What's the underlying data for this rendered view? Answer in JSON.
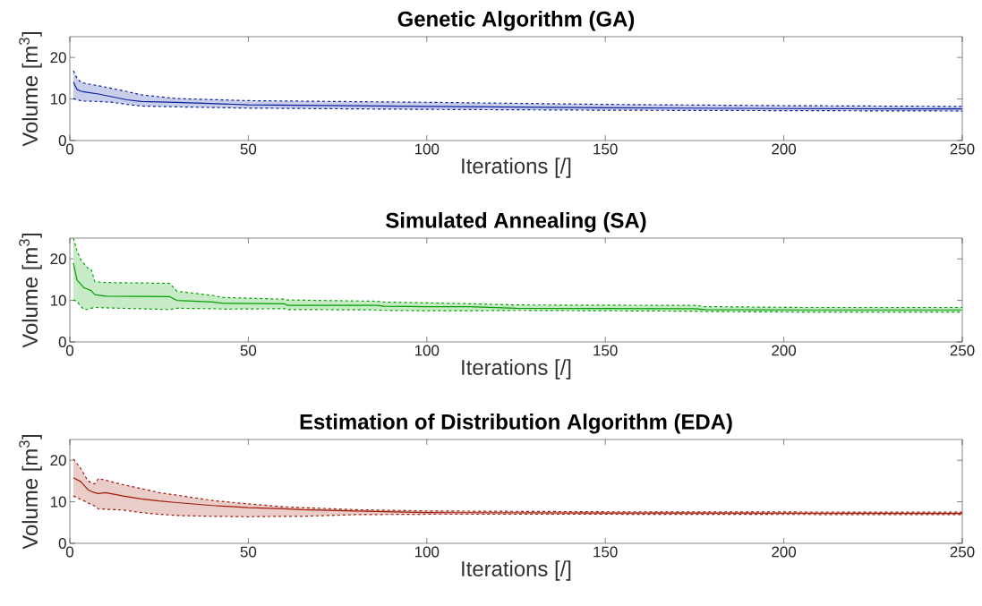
{
  "chart_data": [
    {
      "type": "line",
      "title": "Genetic Algorithm (GA)",
      "xlabel": "Iterations [/]",
      "ylabel": "Volume [m$^{3}$]",
      "xlim": [
        0,
        250
      ],
      "ylim": [
        0,
        25
      ],
      "xticks": [
        0,
        50,
        100,
        150,
        200,
        250
      ],
      "yticks": [
        0,
        10,
        20
      ],
      "grid": false,
      "series": [
        {
          "color": "#0a1f9e",
          "line_style": "solid",
          "x": [
            1,
            2,
            3,
            4,
            8,
            12,
            16,
            20,
            30,
            50,
            100,
            150,
            200,
            250
          ],
          "values": [
            14.1,
            12.3,
            11.9,
            11.7,
            11.2,
            10.5,
            9.8,
            9.4,
            9.2,
            8.6,
            8.2,
            7.9,
            7.7,
            7.6
          ],
          "upper": [
            16.8,
            15.0,
            14.1,
            13.8,
            13.2,
            12.5,
            11.8,
            11.0,
            10.1,
            9.6,
            9.2,
            8.7,
            8.4,
            8.2
          ],
          "lower": [
            10.1,
            9.8,
            9.6,
            9.5,
            9.4,
            9.2,
            8.7,
            8.3,
            8.1,
            7.8,
            7.5,
            7.3,
            7.2,
            7.1
          ]
        },
        {
          "color": "#0a1f9e",
          "line_style": "dashed",
          "x": [
            1,
            2,
            3,
            4,
            8,
            12,
            16,
            20,
            30,
            50,
            100,
            150,
            200,
            250
          ],
          "values": [
            16.8,
            15.0,
            14.1,
            13.8,
            13.2,
            12.5,
            11.8,
            11.0,
            10.1,
            9.6,
            9.2,
            8.7,
            8.4,
            8.2
          ]
        },
        {
          "color": "#0a1f9e",
          "line_style": "dashed",
          "x": [
            1,
            2,
            3,
            4,
            8,
            12,
            16,
            20,
            30,
            50,
            100,
            150,
            200,
            250
          ],
          "values": [
            10.1,
            9.8,
            9.6,
            9.5,
            9.4,
            9.2,
            8.7,
            8.3,
            8.1,
            7.8,
            7.5,
            7.3,
            7.2,
            7.1
          ]
        }
      ]
    },
    {
      "type": "line",
      "title": "Simulated Annealing (SA)",
      "xlabel": "Iterations [/]",
      "ylabel": "Volume [m$^{3}$]",
      "xlim": [
        0,
        250
      ],
      "ylim": [
        0,
        25
      ],
      "xticks": [
        0,
        50,
        100,
        150,
        200,
        250
      ],
      "yticks": [
        0,
        10,
        20
      ],
      "grid": false,
      "series": [
        {
          "color": "#00a000",
          "line_style": "solid",
          "x": [
            1,
            2,
            3,
            4,
            5,
            6,
            7,
            10,
            28,
            30,
            40,
            43,
            60,
            61,
            86,
            88,
            100,
            112,
            125,
            175,
            178,
            205,
            250
          ],
          "values": [
            19.0,
            14.9,
            14.0,
            13.0,
            12.7,
            12.3,
            11.4,
            11.0,
            10.9,
            10.0,
            9.6,
            9.3,
            9.2,
            8.8,
            8.8,
            8.6,
            8.5,
            8.5,
            8.1,
            8.0,
            7.8,
            7.7,
            7.7
          ],
          "upper": [
            25,
            22,
            19.9,
            18.8,
            17.8,
            17.5,
            14.5,
            14.3,
            14.1,
            12.2,
            11.2,
            10.7,
            10.3,
            10.1,
            9.8,
            9.6,
            9.4,
            9.2,
            8.9,
            8.8,
            8.5,
            8.3,
            8.3
          ],
          "lower": [
            10.1,
            9.8,
            8.6,
            7.8,
            7.9,
            8.1,
            8.3,
            8.2,
            7.8,
            8.1,
            8.0,
            7.9,
            8.0,
            7.8,
            7.7,
            7.6,
            7.5,
            7.5,
            7.6,
            7.4,
            7.3,
            7.2,
            7.2
          ]
        },
        {
          "color": "#00a000",
          "line_style": "dashed",
          "x": [
            1,
            2,
            3,
            4,
            5,
            6,
            7,
            10,
            28,
            30,
            40,
            43,
            60,
            61,
            86,
            88,
            100,
            112,
            125,
            175,
            178,
            205,
            250
          ],
          "values": [
            25,
            22,
            19.9,
            18.8,
            17.8,
            17.5,
            14.5,
            14.3,
            14.1,
            12.2,
            11.2,
            10.7,
            10.3,
            10.1,
            9.8,
            9.6,
            9.4,
            9.2,
            8.9,
            8.8,
            8.5,
            8.3,
            8.3
          ]
        },
        {
          "color": "#00a000",
          "line_style": "dashed",
          "x": [
            1,
            2,
            3,
            4,
            5,
            6,
            7,
            10,
            28,
            30,
            40,
            43,
            60,
            61,
            86,
            88,
            100,
            112,
            125,
            175,
            178,
            205,
            250
          ],
          "values": [
            10.1,
            9.8,
            8.6,
            7.8,
            7.9,
            8.1,
            8.3,
            8.2,
            7.8,
            8.1,
            8.0,
            7.9,
            8.0,
            7.8,
            7.7,
            7.6,
            7.5,
            7.5,
            7.6,
            7.4,
            7.3,
            7.2,
            7.2
          ]
        }
      ]
    },
    {
      "type": "line",
      "title": "Estimation of Distribution Algorithm (EDA)",
      "xlabel": "Iterations [/]",
      "ylabel": "Volume [m$^{3}$]",
      "xlim": [
        0,
        250
      ],
      "ylim": [
        0,
        25
      ],
      "xticks": [
        0,
        50,
        100,
        150,
        200,
        250
      ],
      "yticks": [
        0,
        10,
        20
      ],
      "grid": false,
      "series": [
        {
          "color": "#a01a0a",
          "line_style": "solid",
          "x": [
            1,
            3,
            5,
            6,
            7,
            8,
            10,
            15,
            20,
            25,
            30,
            40,
            50,
            60,
            65,
            80,
            100,
            150,
            250
          ],
          "values": [
            15.8,
            14.9,
            13.0,
            12.5,
            12.2,
            12.0,
            12.2,
            11.4,
            10.7,
            10.2,
            9.8,
            9.1,
            8.6,
            8.3,
            8.1,
            7.8,
            7.4,
            7.3,
            7.2
          ],
          "upper": [
            20.3,
            18.1,
            15.1,
            14.6,
            14.3,
            15.6,
            15.2,
            14.1,
            13.2,
            12.2,
            11.6,
            10.3,
            9.5,
            8.8,
            8.6,
            8.1,
            7.8,
            7.6,
            7.5
          ],
          "lower": [
            11.4,
            10.6,
            9.8,
            9.3,
            9.0,
            8.3,
            8.2,
            8.0,
            7.4,
            7.0,
            6.7,
            6.5,
            6.4,
            6.5,
            6.5,
            6.9,
            7.0,
            7.0,
            6.9
          ]
        },
        {
          "color": "#a01a0a",
          "line_style": "dashed",
          "x": [
            1,
            3,
            5,
            6,
            7,
            8,
            10,
            15,
            20,
            25,
            30,
            40,
            50,
            60,
            65,
            80,
            100,
            150,
            250
          ],
          "values": [
            20.3,
            18.1,
            15.1,
            14.6,
            14.3,
            15.6,
            15.2,
            14.1,
            13.2,
            12.2,
            11.6,
            10.3,
            9.5,
            8.8,
            8.6,
            8.1,
            7.8,
            7.6,
            7.5
          ]
        },
        {
          "color": "#a01a0a",
          "line_style": "dashed",
          "x": [
            1,
            3,
            5,
            6,
            7,
            8,
            10,
            15,
            20,
            25,
            30,
            40,
            50,
            60,
            65,
            80,
            100,
            150,
            250
          ],
          "values": [
            11.4,
            10.6,
            9.8,
            9.3,
            9.0,
            8.3,
            8.2,
            8.0,
            7.4,
            7.0,
            6.7,
            6.5,
            6.4,
            6.5,
            6.5,
            6.9,
            7.0,
            7.0,
            6.9
          ]
        }
      ]
    }
  ]
}
